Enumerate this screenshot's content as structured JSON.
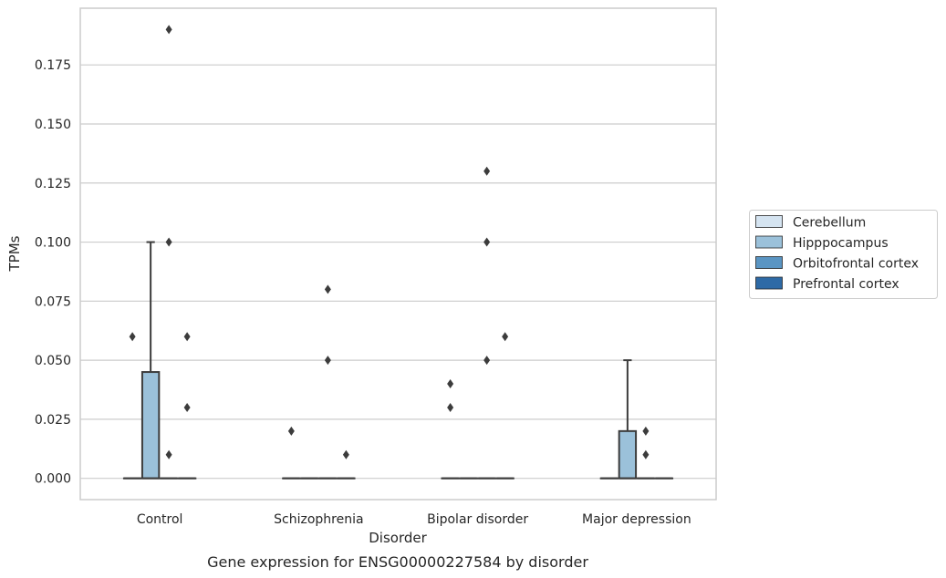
{
  "chart_data": {
    "type": "box",
    "caption": "Gene expression for ENSG00000227584 by disorder",
    "xlabel": "Disorder",
    "ylabel": "TPMs",
    "ylim": [
      -0.009,
      0.199
    ],
    "yticks": [
      "0.000",
      "0.025",
      "0.050",
      "0.075",
      "0.100",
      "0.125",
      "0.150",
      "0.175"
    ],
    "ytick_values": [
      0,
      0.025,
      0.05,
      0.075,
      0.1,
      0.125,
      0.15,
      0.175
    ],
    "grid": true,
    "legend_position": "right",
    "categories": [
      "Control",
      "Schizophrenia",
      "Bipolar disorder",
      "Major depression"
    ],
    "series": [
      {
        "name": "Cerebellum",
        "color": "#d5e4f1",
        "boxes": [
          {
            "q1": 0,
            "median": 0,
            "q3": 0,
            "whislo": 0,
            "whishi": 0,
            "fliers": [
              0.06
            ]
          },
          {
            "q1": 0,
            "median": 0,
            "q3": 0,
            "whislo": 0,
            "whishi": 0,
            "fliers": [
              0.02
            ]
          },
          {
            "q1": 0,
            "median": 0,
            "q3": 0,
            "whislo": 0,
            "whishi": 0,
            "fliers": [
              0.03,
              0.04
            ]
          },
          {
            "q1": 0,
            "median": 0,
            "q3": 0,
            "whislo": 0,
            "whishi": 0,
            "fliers": []
          }
        ]
      },
      {
        "name": "Hipppocampus",
        "color": "#9bc1da",
        "boxes": [
          {
            "q1": 0,
            "median": 0,
            "q3": 0.045,
            "whislo": 0,
            "whishi": 0.1,
            "fliers": []
          },
          {
            "q1": 0,
            "median": 0,
            "q3": 0,
            "whislo": 0,
            "whishi": 0,
            "fliers": []
          },
          {
            "q1": 0,
            "median": 0,
            "q3": 0,
            "whislo": 0,
            "whishi": 0,
            "fliers": []
          },
          {
            "q1": 0,
            "median": 0,
            "q3": 0.02,
            "whislo": 0,
            "whishi": 0.05,
            "fliers": []
          }
        ]
      },
      {
        "name": "Orbitofrontal cortex",
        "color": "#5a95c3",
        "boxes": [
          {
            "q1": 0,
            "median": 0,
            "q3": 0,
            "whislo": 0,
            "whishi": 0,
            "fliers": [
              0.01,
              0.1,
              0.19
            ]
          },
          {
            "q1": 0,
            "median": 0,
            "q3": 0,
            "whislo": 0,
            "whishi": 0,
            "fliers": [
              0.05,
              0.08
            ]
          },
          {
            "q1": 0,
            "median": 0,
            "q3": 0,
            "whislo": 0,
            "whishi": 0,
            "fliers": [
              0.05,
              0.1,
              0.13
            ]
          },
          {
            "q1": 0,
            "median": 0,
            "q3": 0,
            "whislo": 0,
            "whishi": 0,
            "fliers": [
              0.01,
              0.02
            ]
          }
        ]
      },
      {
        "name": "Prefrontal cortex",
        "color": "#2e6aa6",
        "boxes": [
          {
            "q1": 0,
            "median": 0,
            "q3": 0,
            "whislo": 0,
            "whishi": 0,
            "fliers": [
              0.03,
              0.06
            ]
          },
          {
            "q1": 0,
            "median": 0,
            "q3": 0,
            "whislo": 0,
            "whishi": 0,
            "fliers": [
              0.01
            ]
          },
          {
            "q1": 0,
            "median": 0,
            "q3": 0,
            "whislo": 0,
            "whishi": 0,
            "fliers": [
              0.06
            ]
          },
          {
            "q1": 0,
            "median": 0,
            "q3": 0,
            "whislo": 0,
            "whishi": 0,
            "fliers": []
          }
        ]
      }
    ]
  }
}
